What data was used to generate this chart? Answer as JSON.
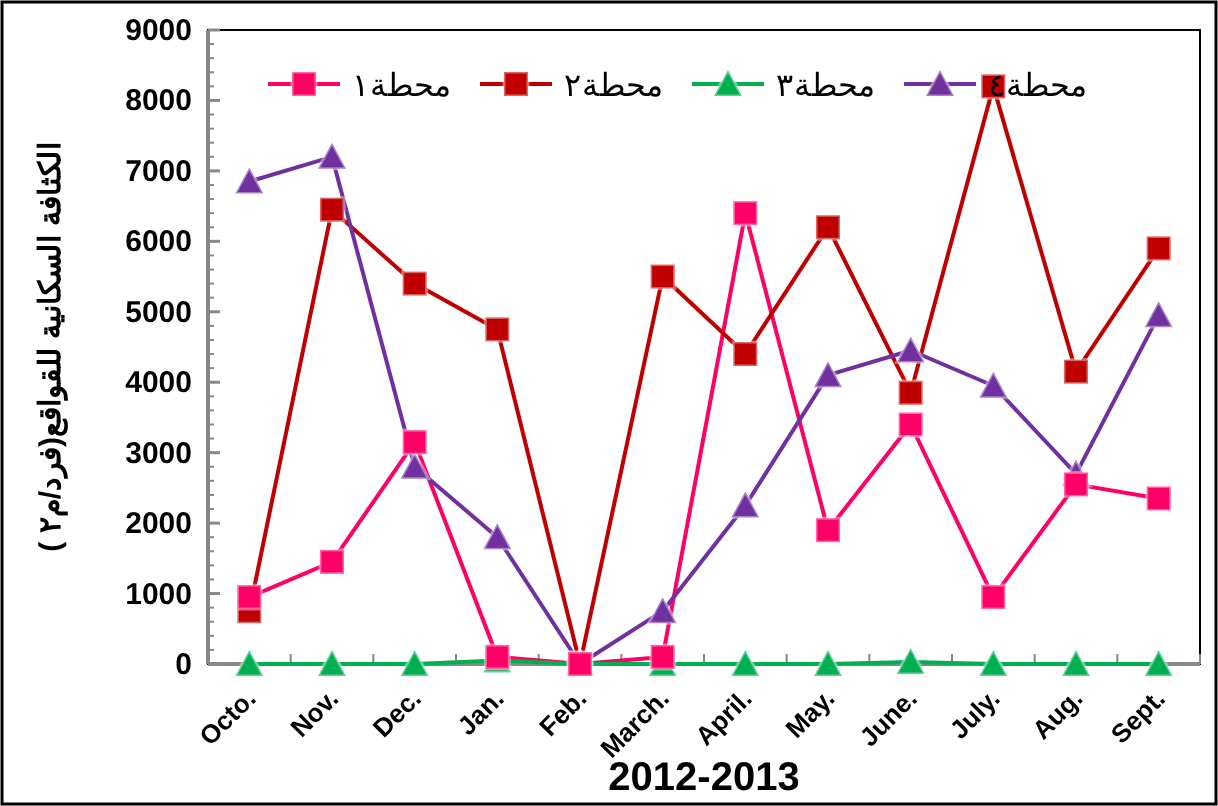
{
  "chart_data": {
    "type": "line",
    "xlabel": "2012-2013",
    "ylabel": "الكثافة السكانية للقواقع(فرد/م٢ )",
    "categories": [
      "Octo.",
      "Nov.",
      "Dec.",
      "Jan.",
      "Feb.",
      "March.",
      "April.",
      "May.",
      "June.",
      "July.",
      "Aug.",
      "Sept."
    ],
    "series": [
      {
        "name": "محطة١",
        "color": "#ff0066",
        "marker": "square",
        "values": [
          950,
          1450,
          3150,
          100,
          0,
          100,
          6400,
          1900,
          3400,
          950,
          2550,
          2350
        ]
      },
      {
        "name": "محطة٢",
        "color": "#c00000",
        "marker": "square",
        "values": [
          750,
          6450,
          5400,
          4750,
          0,
          5500,
          4400,
          6200,
          3850,
          8200,
          4150,
          5900
        ]
      },
      {
        "name": "محطة٣",
        "color": "#00b050",
        "marker": "triangle",
        "values": [
          0,
          0,
          0,
          50,
          0,
          0,
          0,
          0,
          30,
          0,
          0,
          0
        ]
      },
      {
        "name": "محطة٤",
        "color": "#7030a0",
        "marker": "triangle",
        "values": [
          6850,
          7200,
          2800,
          1800,
          0,
          750,
          2250,
          4100,
          4450,
          3950,
          2700,
          4950
        ]
      }
    ],
    "ylim": [
      0,
      9000
    ],
    "yticks": [
      0,
      1000,
      2000,
      3000,
      4000,
      5000,
      6000,
      7000,
      8000,
      9000
    ],
    "grid": false,
    "legend": "top"
  }
}
